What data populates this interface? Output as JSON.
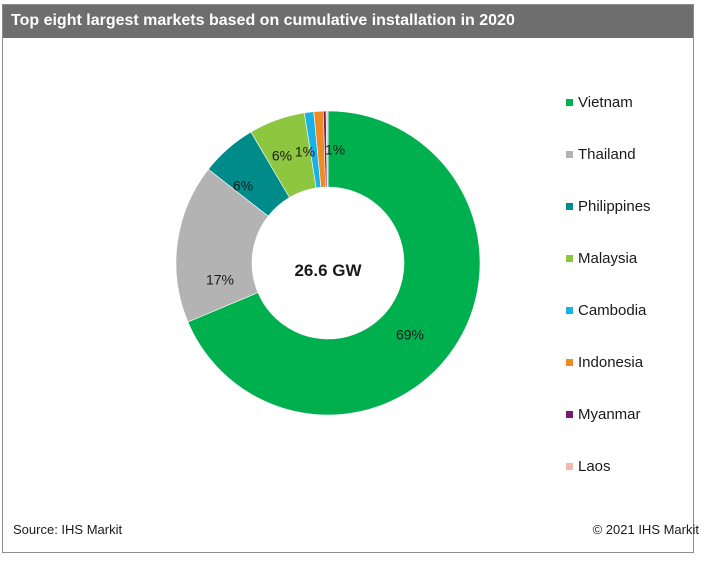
{
  "header": {
    "title": "Top eight largest markets based on cumulative installation in 2020"
  },
  "chart_data": {
    "type": "pie",
    "variant": "donut",
    "center_label": "26.6 GW",
    "categories": [
      "Vietnam",
      "Thailand",
      "Philippines",
      "Malaysia",
      "Cambodia",
      "Indonesia",
      "Myanmar",
      "Laos"
    ],
    "values": [
      69,
      17,
      6,
      6,
      1,
      1,
      0.3,
      0.2
    ],
    "data_labels": [
      "69%",
      "17%",
      "6%",
      "6%",
      "1%",
      "1%",
      "",
      ""
    ],
    "colors": [
      "#00b04f",
      "#b3b3b3",
      "#008b8b",
      "#8dc63f",
      "#1ab2e6",
      "#f08a24",
      "#7a1a6e",
      "#f2b8b0"
    ],
    "legend_position": "right"
  },
  "footer": {
    "source": "Source: IHS Markit",
    "copyright": "© 2021 IHS Markit"
  }
}
